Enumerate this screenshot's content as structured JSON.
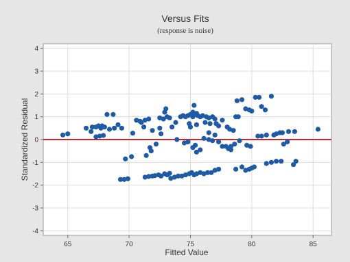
{
  "chart_data": {
    "type": "scatter",
    "title": "Versus Fits",
    "subtitle": "(response is noise)",
    "xlabel": "Fitted Value",
    "ylabel": "Standardized Residual",
    "xlim": [
      63,
      86.5
    ],
    "ylim": [
      -4.2,
      4.2
    ],
    "x_ticks": [
      65,
      70,
      75,
      80,
      85
    ],
    "y_ticks": [
      -4,
      -3,
      -2,
      -1,
      0,
      1,
      2,
      3,
      4
    ],
    "grid": true,
    "reference_line_y": 0,
    "colors": {
      "point": "#1f5aa6",
      "reference_line": "#d42020",
      "grid": "#dcdcdc",
      "plot_background": "#ffffff",
      "figure_background": "#e6e6e6"
    },
    "points": [
      [
        64.6,
        0.2
      ],
      [
        65.0,
        0.25
      ],
      [
        66.5,
        0.5
      ],
      [
        66.9,
        0.35
      ],
      [
        67.0,
        0.55
      ],
      [
        67.3,
        0.55
      ],
      [
        67.5,
        0.6
      ],
      [
        67.7,
        0.5
      ],
      [
        67.8,
        0.6
      ],
      [
        68.0,
        0.55
      ],
      [
        67.3,
        0.12
      ],
      [
        67.6,
        0.15
      ],
      [
        67.9,
        0.18
      ],
      [
        68.2,
        1.1
      ],
      [
        68.7,
        1.1
      ],
      [
        68.4,
        0.45
      ],
      [
        68.8,
        0.5
      ],
      [
        69.1,
        0.65
      ],
      [
        69.4,
        0.5
      ],
      [
        69.3,
        -1.75
      ],
      [
        69.6,
        -1.75
      ],
      [
        69.9,
        -1.72
      ],
      [
        69.7,
        -0.85
      ],
      [
        70.2,
        -0.75
      ],
      [
        70.3,
        0.28
      ],
      [
        70.6,
        0.85
      ],
      [
        70.9,
        0.8
      ],
      [
        71.0,
        0.75
      ],
      [
        71.3,
        0.85
      ],
      [
        71.6,
        0.9
      ],
      [
        71.2,
        0.55
      ],
      [
        71.3,
        -1.65
      ],
      [
        71.6,
        -1.62
      ],
      [
        71.9,
        -1.6
      ],
      [
        72.1,
        -1.58
      ],
      [
        72.4,
        -1.55
      ],
      [
        72.6,
        -1.6
      ],
      [
        72.9,
        -1.5
      ],
      [
        73.1,
        -1.55
      ],
      [
        73.3,
        -1.48
      ],
      [
        71.4,
        -0.7
      ],
      [
        71.8,
        -0.5
      ],
      [
        72.2,
        -0.2
      ],
      [
        71.7,
        -0.35
      ],
      [
        71.9,
        0.4
      ],
      [
        72.5,
        0.5
      ],
      [
        72.6,
        0.25
      ],
      [
        72.5,
        0.95
      ],
      [
        72.8,
        0.9
      ],
      [
        73.1,
        1.0
      ],
      [
        73.3,
        0.95
      ],
      [
        73.0,
        1.35
      ],
      [
        72.9,
        1.2
      ],
      [
        73.5,
        0.55
      ],
      [
        73.8,
        0.75
      ],
      [
        73.4,
        -1.7
      ],
      [
        73.7,
        -1.65
      ],
      [
        74.0,
        -1.6
      ],
      [
        74.3,
        -1.6
      ],
      [
        74.6,
        -1.55
      ],
      [
        74.9,
        -1.5
      ],
      [
        75.1,
        -1.45
      ],
      [
        75.3,
        -1.55
      ],
      [
        74.2,
        1.0
      ],
      [
        74.4,
        1.05
      ],
      [
        74.6,
        1.0
      ],
      [
        74.8,
        1.05
      ],
      [
        75.0,
        1.1
      ],
      [
        75.2,
        1.0
      ],
      [
        75.4,
        1.1
      ],
      [
        75.6,
        1.05
      ],
      [
        75.8,
        1.0
      ],
      [
        76.0,
        1.05
      ],
      [
        76.3,
        1.0
      ],
      [
        76.5,
        0.95
      ],
      [
        76.8,
        1.0
      ],
      [
        77.0,
        0.9
      ],
      [
        75.3,
        1.5
      ],
      [
        75.2,
        1.2
      ],
      [
        75.5,
        1.15
      ],
      [
        74.9,
        0.7
      ],
      [
        75.5,
        0.65
      ],
      [
        75.0,
        0.55
      ],
      [
        76.2,
        0.75
      ],
      [
        76.6,
        0.7
      ],
      [
        77.1,
        0.7
      ],
      [
        77.3,
        0.6
      ],
      [
        73.9,
        0.0
      ],
      [
        74.5,
        -0.15
      ],
      [
        74.8,
        -0.1
      ],
      [
        75.2,
        -0.35
      ],
      [
        75.5,
        -0.55
      ],
      [
        75.8,
        -0.45
      ],
      [
        75.4,
        -0.25
      ],
      [
        76.1,
        0.05
      ],
      [
        76.5,
        0.0
      ],
      [
        76.8,
        -0.05
      ],
      [
        75.5,
        -1.5
      ],
      [
        75.8,
        -1.45
      ],
      [
        76.1,
        -1.5
      ],
      [
        76.4,
        -1.45
      ],
      [
        76.7,
        -1.45
      ],
      [
        77.0,
        -1.35
      ],
      [
        77.3,
        -1.3
      ],
      [
        76.5,
        0.3
      ],
      [
        77.0,
        0.2
      ],
      [
        77.3,
        -0.1
      ],
      [
        77.6,
        -0.3
      ],
      [
        77.9,
        -0.3
      ],
      [
        78.1,
        -0.4
      ],
      [
        78.3,
        -0.3
      ],
      [
        77.6,
        0.85
      ],
      [
        78.0,
        0.55
      ],
      [
        78.2,
        0.45
      ],
      [
        78.5,
        0.4
      ],
      [
        78.7,
        1.0
      ],
      [
        78.9,
        1.0
      ],
      [
        78.8,
        1.7
      ],
      [
        79.2,
        1.75
      ],
      [
        79.5,
        1.35
      ],
      [
        79.8,
        1.3
      ],
      [
        80.0,
        1.25
      ],
      [
        78.3,
        -0.45
      ],
      [
        78.6,
        -0.2
      ],
      [
        79.0,
        -0.05
      ],
      [
        79.6,
        -0.25
      ],
      [
        79.9,
        -0.3
      ],
      [
        78.7,
        -1.3
      ],
      [
        79.2,
        -1.2
      ],
      [
        79.5,
        -1.35
      ],
      [
        79.8,
        -1.3
      ],
      [
        80.0,
        -1.25
      ],
      [
        80.2,
        -1.2
      ],
      [
        80.3,
        1.85
      ],
      [
        80.6,
        1.85
      ],
      [
        80.8,
        1.45
      ],
      [
        81.1,
        1.3
      ],
      [
        80.5,
        0.15
      ],
      [
        80.8,
        0.15
      ],
      [
        81.2,
        0.2
      ],
      [
        81.6,
        1.9
      ],
      [
        81.8,
        0.2
      ],
      [
        82.0,
        0.25
      ],
      [
        82.3,
        0.3
      ],
      [
        82.5,
        0.3
      ],
      [
        82.6,
        -0.2
      ],
      [
        82.9,
        -0.1
      ],
      [
        83.0,
        0.35
      ],
      [
        83.5,
        0.35
      ],
      [
        81.2,
        -1.05
      ],
      [
        81.6,
        -1.0
      ],
      [
        82.0,
        -0.95
      ],
      [
        82.4,
        -0.95
      ],
      [
        83.4,
        -1.1
      ],
      [
        83.6,
        -0.95
      ],
      [
        85.4,
        0.45
      ]
    ]
  }
}
